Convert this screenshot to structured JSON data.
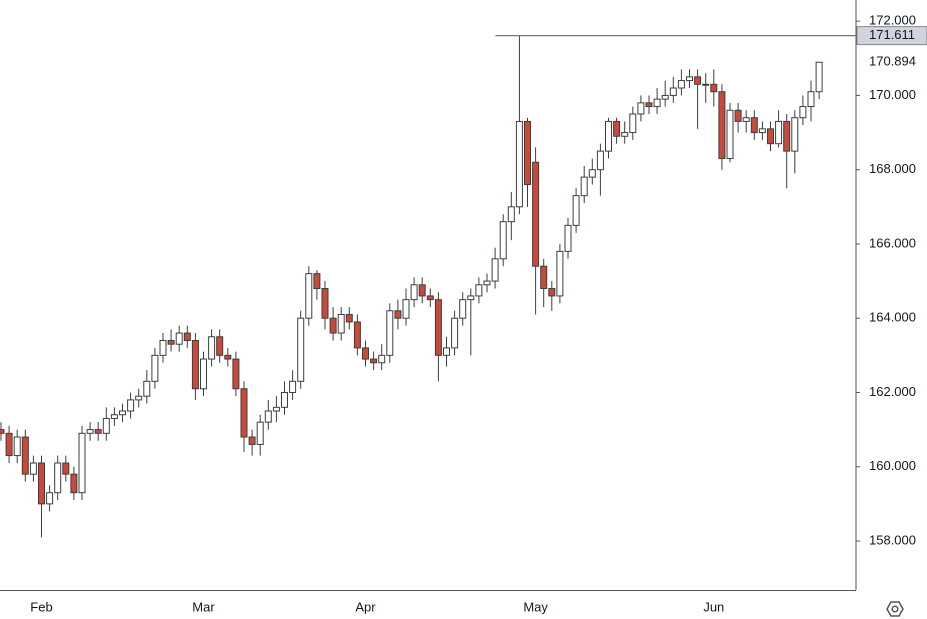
{
  "chart_data": {
    "type": "candlestick",
    "categories": [
      null,
      null,
      null,
      null,
      null,
      "Feb",
      null,
      null,
      null,
      null,
      null,
      null,
      null,
      null,
      null,
      null,
      null,
      null,
      null,
      null,
      null,
      null,
      null,
      null,
      null,
      "Mar",
      null,
      null,
      null,
      null,
      null,
      null,
      null,
      null,
      null,
      null,
      null,
      null,
      null,
      null,
      null,
      null,
      null,
      null,
      null,
      "Apr",
      null,
      null,
      null,
      null,
      null,
      null,
      null,
      null,
      null,
      null,
      null,
      null,
      null,
      null,
      null,
      null,
      null,
      null,
      null,
      null,
      "May",
      null,
      null,
      null,
      null,
      null,
      null,
      null,
      null,
      null,
      null,
      null,
      null,
      null,
      null,
      null,
      null,
      null,
      null,
      null,
      null,
      null,
      "Jun",
      null,
      null,
      null,
      null,
      null,
      null,
      null,
      null,
      null,
      null,
      null,
      null,
      null
    ],
    "open": [
      161.0,
      160.9,
      160.3,
      160.8,
      159.8,
      160.1,
      159.0,
      159.3,
      160.1,
      159.8,
      159.3,
      160.9,
      161.0,
      160.9,
      161.3,
      161.4,
      161.5,
      161.8,
      161.9,
      162.3,
      163.0,
      163.4,
      163.3,
      163.6,
      163.4,
      162.1,
      162.9,
      163.5,
      163.0,
      162.9,
      162.1,
      160.8,
      160.6,
      161.2,
      161.5,
      161.6,
      162.0,
      162.3,
      164.0,
      165.2,
      164.8,
      164.0,
      163.6,
      164.1,
      163.9,
      163.2,
      162.9,
      162.8,
      163.0,
      164.2,
      164.0,
      164.5,
      164.9,
      164.6,
      164.5,
      163.0,
      163.2,
      164.0,
      164.5,
      164.6,
      164.9,
      165.0,
      165.6,
      166.6,
      167.0,
      169.3,
      168.2,
      165.4,
      164.8,
      164.6,
      165.8,
      166.5,
      167.3,
      167.8,
      168.0,
      168.5,
      169.3,
      168.9,
      169.0,
      169.5,
      169.8,
      169.7,
      169.9,
      170.0,
      170.2,
      170.4,
      170.5,
      170.3,
      170.3,
      170.1,
      168.3,
      169.6,
      169.3,
      169.4,
      169.0,
      169.1,
      168.7,
      169.3,
      168.5,
      169.4,
      169.7,
      170.1
    ],
    "high": [
      161.2,
      161.1,
      161.0,
      161.0,
      160.3,
      160.3,
      159.5,
      160.3,
      160.3,
      160.0,
      161.1,
      161.2,
      161.2,
      161.6,
      161.6,
      161.7,
      162.0,
      162.1,
      162.6,
      163.2,
      163.6,
      163.7,
      163.8,
      163.8,
      163.6,
      163.1,
      163.7,
      163.7,
      163.2,
      163.1,
      162.3,
      161.0,
      161.4,
      161.8,
      161.9,
      162.3,
      162.6,
      164.2,
      165.4,
      165.3,
      165.0,
      164.3,
      164.3,
      164.3,
      164.1,
      163.4,
      163.1,
      163.3,
      164.4,
      164.5,
      164.8,
      165.1,
      165.1,
      164.8,
      164.7,
      163.5,
      164.2,
      164.7,
      164.8,
      165.1,
      165.2,
      165.9,
      166.8,
      167.4,
      171.611,
      169.4,
      168.6,
      165.6,
      165.0,
      166.0,
      166.7,
      167.5,
      168.1,
      168.3,
      168.7,
      169.4,
      169.4,
      169.3,
      169.7,
      170.0,
      170.0,
      170.2,
      170.4,
      170.5,
      170.7,
      170.7,
      170.7,
      170.6,
      170.7,
      170.3,
      169.8,
      169.8,
      169.6,
      169.6,
      169.3,
      169.3,
      169.6,
      169.5,
      169.6,
      170.0,
      170.4,
      170.9
    ],
    "low": [
      160.7,
      160.1,
      160.1,
      159.6,
      159.6,
      158.1,
      158.8,
      159.1,
      159.6,
      159.1,
      159.1,
      160.7,
      160.7,
      160.7,
      161.1,
      161.2,
      161.3,
      161.6,
      161.7,
      162.1,
      162.8,
      163.1,
      163.1,
      163.2,
      161.8,
      161.9,
      162.7,
      162.8,
      162.7,
      161.9,
      160.4,
      160.3,
      160.3,
      161.0,
      161.2,
      161.4,
      161.8,
      162.1,
      163.8,
      164.5,
      163.7,
      163.4,
      163.4,
      163.7,
      163.0,
      162.7,
      162.6,
      162.6,
      162.8,
      163.7,
      163.8,
      164.3,
      164.4,
      164.3,
      162.3,
      162.7,
      163.0,
      163.8,
      163.0,
      164.4,
      164.7,
      164.8,
      165.4,
      166.1,
      166.8,
      167.0,
      164.1,
      164.3,
      164.2,
      164.4,
      165.6,
      166.3,
      167.1,
      167.6,
      167.3,
      168.3,
      168.7,
      168.7,
      168.8,
      169.3,
      169.5,
      169.5,
      169.7,
      169.8,
      170.0,
      170.2,
      169.1,
      169.8,
      169.7,
      168.0,
      168.2,
      169.0,
      169.0,
      168.8,
      168.8,
      168.5,
      168.6,
      167.5,
      167.9,
      169.2,
      169.3,
      169.9
    ],
    "close": [
      160.9,
      160.3,
      160.8,
      159.8,
      160.1,
      159.0,
      159.3,
      160.1,
      159.8,
      159.3,
      160.9,
      161.0,
      160.9,
      161.3,
      161.4,
      161.5,
      161.8,
      161.9,
      162.3,
      163.0,
      163.4,
      163.3,
      163.6,
      163.4,
      162.1,
      162.9,
      163.5,
      163.0,
      162.9,
      162.1,
      160.8,
      160.6,
      161.2,
      161.5,
      161.6,
      162.0,
      162.3,
      164.0,
      165.2,
      164.8,
      164.0,
      163.6,
      164.1,
      163.9,
      163.2,
      162.9,
      162.8,
      163.0,
      164.2,
      164.0,
      164.5,
      164.9,
      164.6,
      164.5,
      163.0,
      163.2,
      164.0,
      164.5,
      164.6,
      164.9,
      165.0,
      165.6,
      166.6,
      167.0,
      169.3,
      167.6,
      165.4,
      164.8,
      164.6,
      165.8,
      166.5,
      167.3,
      167.8,
      168.0,
      168.5,
      169.3,
      168.9,
      169.0,
      169.5,
      169.8,
      169.7,
      169.9,
      170.0,
      170.2,
      170.4,
      170.5,
      170.3,
      170.3,
      170.1,
      168.3,
      169.6,
      169.3,
      169.4,
      169.0,
      169.1,
      168.7,
      169.3,
      168.5,
      169.4,
      169.7,
      170.1,
      170.894
    ],
    "up_color": "#ffffff",
    "down_color": "#c94a3b",
    "outline_color": "#3a3f3c",
    "ylim": [
      156.68,
      172.57
    ],
    "yticks": [
      {
        "value": 158,
        "label": "158.000"
      },
      {
        "value": 160,
        "label": "160.000"
      },
      {
        "value": 162,
        "label": "162.000"
      },
      {
        "value": 164,
        "label": "164.000"
      },
      {
        "value": 166,
        "label": "166.000"
      },
      {
        "value": 168,
        "label": "168.000"
      },
      {
        "value": 170,
        "label": "170.000"
      },
      {
        "value": 172,
        "label": "172.000"
      }
    ],
    "high_marker": {
      "value": 171.611,
      "label": "171.611"
    },
    "last_price": {
      "value": 170.894,
      "label": "170.894"
    }
  }
}
